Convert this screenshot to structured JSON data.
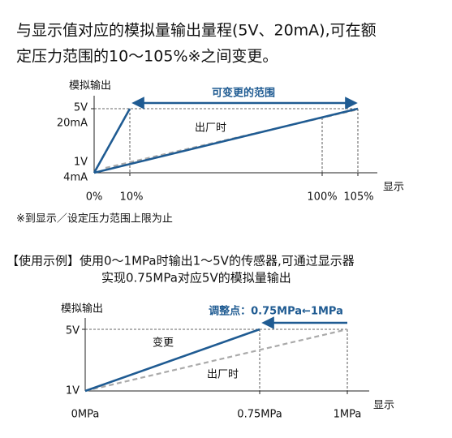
{
  "intro": {
    "lines": [
      "与显示值对应的模拟量输出量程(5V、20mA),可在额",
      "定压力范围的10～105%※之间变更。"
    ]
  },
  "diagram1": {
    "y_axis_label": "模拟输出",
    "y_labels": [
      "5V",
      "20mA",
      "1V",
      "4mA"
    ],
    "x_labels": [
      "0%",
      "10%",
      "100%",
      "105%"
    ],
    "x_axis_label": "显示",
    "range_label": "可变更的范围",
    "factory_label": "出厂时"
  },
  "footnote": "※到显示／设定压力范围上限为止",
  "example": {
    "lines": [
      "【使用示例】使用0～1MPa时输出1～5V的传感器,可通过显示器",
      "实现0.75MPa对应5V的模拟量输出"
    ]
  },
  "diagram2": {
    "y_axis_label": "模拟输出",
    "y_labels": [
      "5V",
      "1V"
    ],
    "x_labels": [
      "0MPa",
      "0.75MPa",
      "1MPa"
    ],
    "x_axis_label": "显示",
    "adjust_label": "调整点：0.75MPa←1MPa",
    "change_label": "变更",
    "factory_label": "出厂时"
  }
}
